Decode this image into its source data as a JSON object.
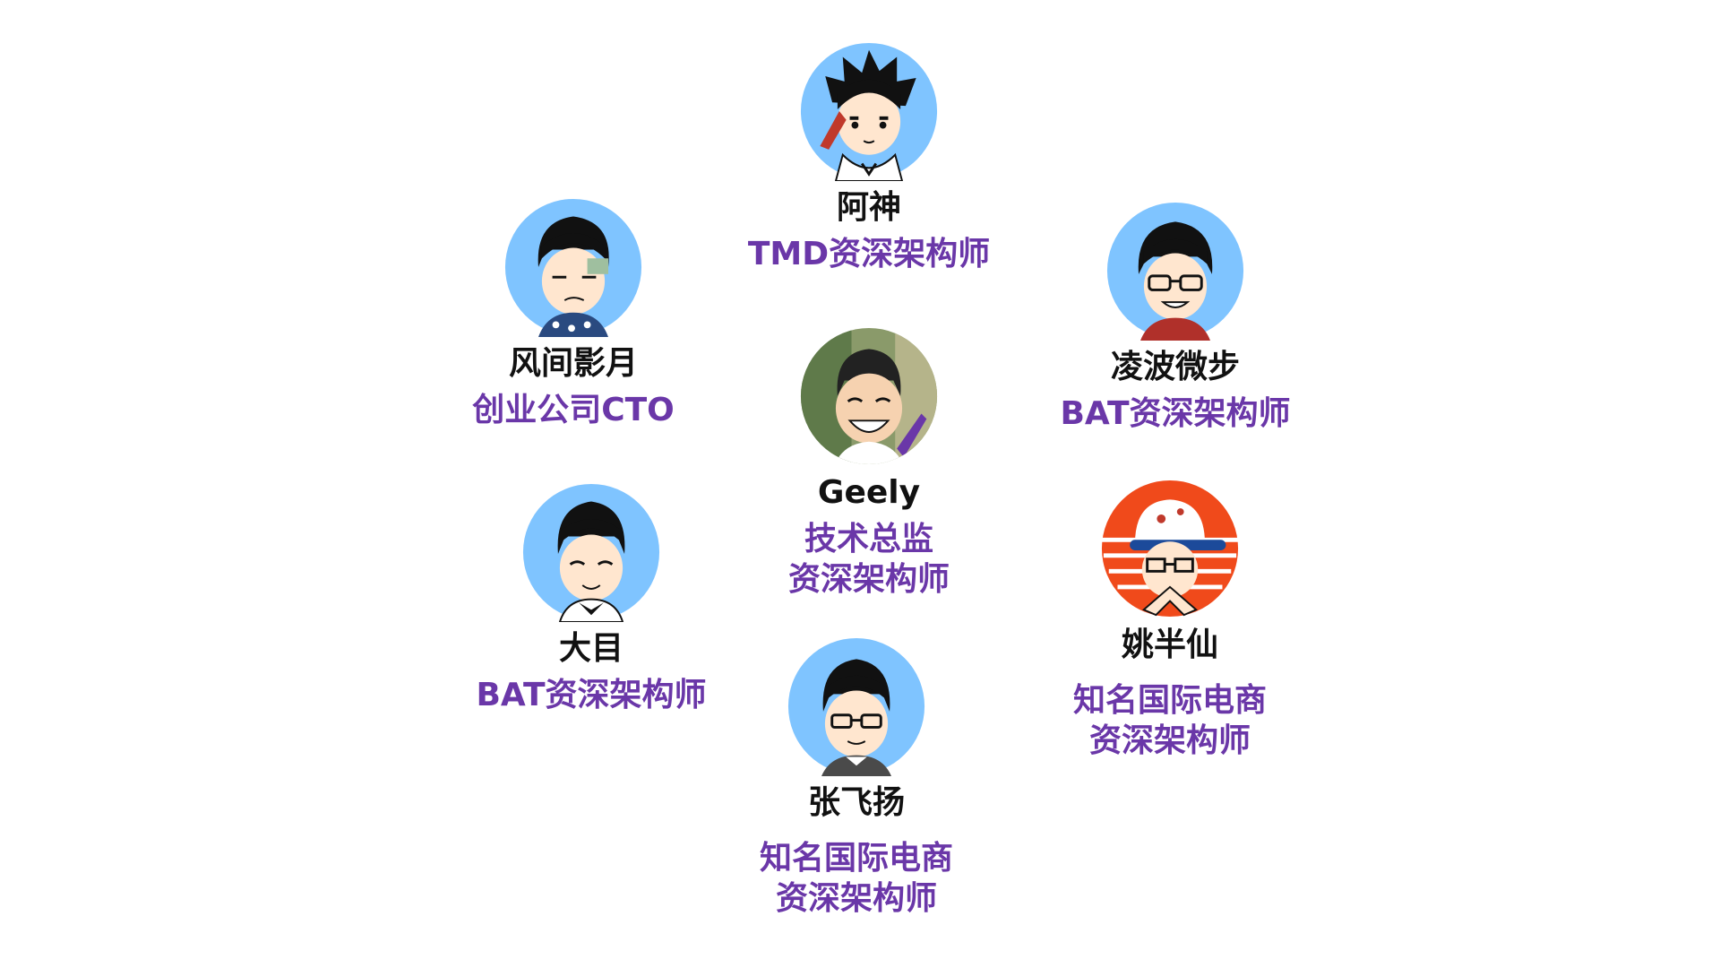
{
  "colors": {
    "background": "#ffffff",
    "name": "#111111",
    "role": "#6a37a8",
    "avatar_blue": "#7fc4ff",
    "avatar_orange": "#f04a1b"
  },
  "members": [
    {
      "id": "ashen",
      "name": "阿神",
      "role_lines": [
        "TMD资深架构师"
      ],
      "avatar_icon": "cartoon-avatar-icon"
    },
    {
      "id": "fengjian",
      "name": "风间影月",
      "role_lines": [
        "创业公司CTO"
      ],
      "avatar_icon": "cartoon-avatar-icon"
    },
    {
      "id": "lingbo",
      "name": "凌波微步",
      "role_lines": [
        "BAT资深架构师"
      ],
      "avatar_icon": "cartoon-avatar-icon"
    },
    {
      "id": "geely",
      "name": "Geely",
      "role_lines": [
        "技术总监",
        "资深架构师"
      ],
      "avatar_icon": "photo-avatar-icon"
    },
    {
      "id": "damu",
      "name": "大目",
      "role_lines": [
        "BAT资深架构师"
      ],
      "avatar_icon": "cartoon-avatar-icon"
    },
    {
      "id": "yaobanxian",
      "name": "姚半仙",
      "role_lines": [
        "知名国际电商",
        "资深架构师"
      ],
      "avatar_icon": "cartoon-avatar-icon"
    },
    {
      "id": "zhangfeiyang",
      "name": "张飞扬",
      "role_lines": [
        "知名国际电商",
        "资深架构师"
      ],
      "avatar_icon": "cartoon-avatar-icon"
    }
  ]
}
